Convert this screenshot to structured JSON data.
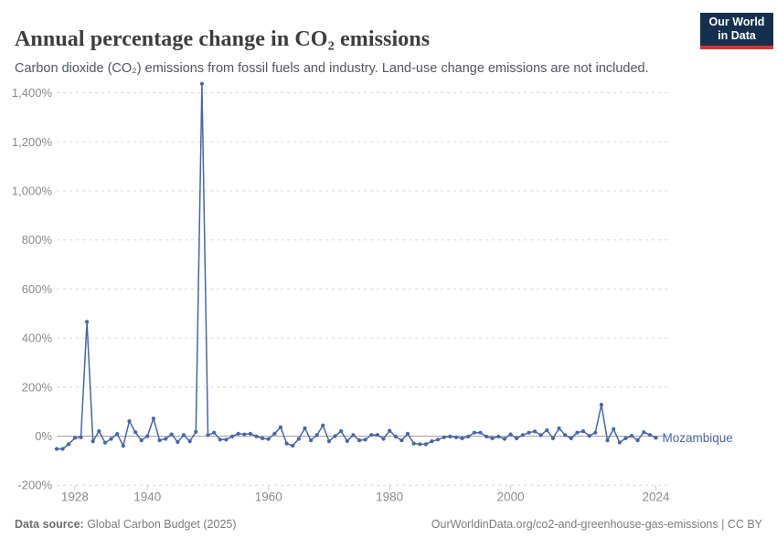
{
  "header": {
    "title": "Annual percentage change in CO₂ emissions",
    "subtitle": "Carbon dioxide (CO₂) emissions from fossil fuels and industry. Land-use change emissions are not included."
  },
  "logo": {
    "line1": "Our World",
    "line2": "in Data",
    "bg_color": "#15304f",
    "bar_color": "#d7342a"
  },
  "chart_data": {
    "type": "line",
    "title": "Annual percentage change in CO₂ emissions",
    "xlabel": "",
    "ylabel": "",
    "grid": "horizontal-dashed",
    "legend_position": "end-of-line-label",
    "xlim": [
      1925,
      2024
    ],
    "ylim": [
      -200,
      1450
    ],
    "y_ticks": [
      -200,
      0,
      200,
      400,
      600,
      800,
      1000,
      1200,
      1400
    ],
    "y_tick_labels": [
      "-200%",
      "0%",
      "200%",
      "400%",
      "600%",
      "800%",
      "1,000%",
      "1,200%",
      "1,400%"
    ],
    "x_ticks": [
      1928,
      1940,
      1960,
      1980,
      2000,
      2024
    ],
    "x_tick_labels": [
      "1928",
      "1940",
      "1960",
      "1980",
      "2000",
      "2024"
    ],
    "series": [
      {
        "name": "Mozambique",
        "color": "#4666a5",
        "x": [
          1925,
          1926,
          1927,
          1928,
          1929,
          1930,
          1931,
          1932,
          1933,
          1934,
          1935,
          1936,
          1937,
          1938,
          1939,
          1940,
          1941,
          1942,
          1943,
          1944,
          1945,
          1946,
          1947,
          1948,
          1949,
          1950,
          1951,
          1952,
          1953,
          1954,
          1955,
          1956,
          1957,
          1958,
          1959,
          1960,
          1961,
          1962,
          1963,
          1964,
          1965,
          1966,
          1967,
          1968,
          1969,
          1970,
          1971,
          1972,
          1973,
          1974,
          1975,
          1976,
          1977,
          1978,
          1979,
          1980,
          1981,
          1982,
          1983,
          1984,
          1985,
          1986,
          1987,
          1988,
          1989,
          1990,
          1991,
          1992,
          1993,
          1994,
          1995,
          1996,
          1997,
          1998,
          1999,
          2000,
          2001,
          2002,
          2003,
          2004,
          2005,
          2006,
          2007,
          2008,
          2009,
          2010,
          2011,
          2012,
          2013,
          2014,
          2015,
          2016,
          2017,
          2018,
          2019,
          2020,
          2021,
          2022,
          2023,
          2024
        ],
        "values": [
          -52,
          -52,
          -33,
          -7,
          -5,
          466,
          -21,
          20,
          -27,
          -11,
          9,
          -40,
          61,
          16,
          -17,
          0,
          72,
          -17,
          -11,
          7,
          -24,
          4,
          -21,
          17,
          1437,
          4,
          14,
          -14,
          -14,
          -1,
          10,
          7,
          10,
          -1,
          -9,
          -12,
          10,
          36,
          -30,
          -39,
          -11,
          32,
          -17,
          4,
          44,
          -21,
          0,
          20,
          -20,
          4,
          -17,
          -14,
          5,
          5,
          -11,
          22,
          -2,
          -17,
          10,
          -30,
          -33,
          -33,
          -21,
          -14,
          -5,
          -2,
          -5,
          -9,
          -2,
          14,
          14,
          -2,
          -9,
          -2,
          -11,
          7,
          -9,
          4,
          14,
          19,
          4,
          24,
          -9,
          32,
          4,
          -9,
          14,
          20,
          1,
          14,
          128,
          -17,
          29,
          -26,
          -9,
          1,
          -17,
          16,
          5,
          -7
        ]
      }
    ],
    "axis_colors": {
      "grid_dashed": "#d8d8d8",
      "zero_line": "#a3a3a3",
      "tick_mark": "#c9c9c9",
      "tick_text": "#8b8b8b"
    }
  },
  "footer": {
    "source_label": "Data source:",
    "source_value": " Global Carbon Budget (2025)",
    "credit": "OurWorldinData.org/co2-and-greenhouse-gas-emissions | CC BY"
  }
}
